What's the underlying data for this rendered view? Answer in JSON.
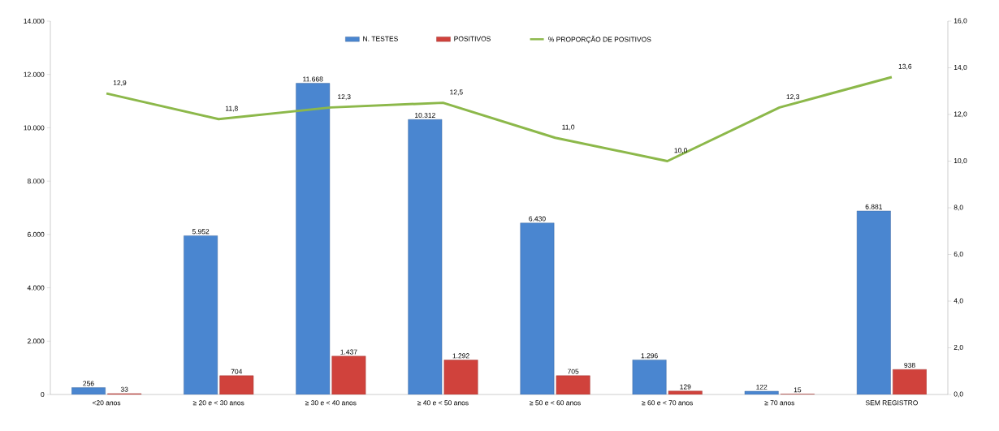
{
  "chart_data": {
    "type": "bar",
    "categories": [
      "<20 anos",
      "≥ 20 e < 30 anos",
      "≥ 30 e < 40 anos",
      "≥ 40 e < 50 anos",
      "≥ 50 e < 60 anos",
      "≥ 60 e < 70 anos",
      "≥ 70 anos",
      "SEM REGISTRO"
    ],
    "series": [
      {
        "name": "N. TESTES",
        "color": "#4a86d0",
        "values": [
          256,
          5952,
          11668,
          10312,
          6430,
          1296,
          122,
          6881
        ],
        "value_labels": [
          "256",
          "5.952",
          "11.668",
          "10.312",
          "6.430",
          "1.296",
          "122",
          "6.881"
        ]
      },
      {
        "name": "POSITIVOS",
        "color": "#d0423c",
        "values": [
          33,
          704,
          1437,
          1292,
          705,
          129,
          15,
          938
        ],
        "value_labels": [
          "33",
          "704",
          "1.437",
          "1.292",
          "705",
          "129",
          "15",
          "938"
        ]
      },
      {
        "name": "% PROPORÇÃO DE POSITIVOS",
        "type": "line",
        "axis": "y2",
        "color": "#8cb84a",
        "values": [
          12.9,
          11.8,
          12.3,
          12.5,
          11.0,
          10.0,
          12.3,
          13.6
        ],
        "value_labels": [
          "12,9",
          "11,8",
          "12,3",
          "12,5",
          "11,0",
          "10,0",
          "12,3",
          "13,6"
        ]
      }
    ],
    "ylim": [
      0,
      14000
    ],
    "yticks": [
      0,
      {
        "value": 2000,
        "label": "2.000"
      },
      {
        "value": 4000,
        "label": "4.000"
      },
      {
        "value": 6000,
        "label": "6.000"
      },
      {
        "value": 8000,
        "label": "8.000"
      },
      {
        "value": 10000,
        "label": "10.000"
      },
      {
        "value": 12000,
        "label": "12.000"
      },
      {
        "value": 14000,
        "label": "14.000"
      }
    ],
    "y2lim": [
      0,
      16
    ],
    "y2ticks": [
      {
        "value": 0,
        "label": "0,0"
      },
      {
        "value": 2,
        "label": "2,0"
      },
      {
        "value": 4,
        "label": "4,0"
      },
      {
        "value": 6,
        "label": "6,0"
      },
      {
        "value": 8,
        "label": "8,0"
      },
      {
        "value": 10,
        "label": "10,0"
      },
      {
        "value": 12,
        "label": "12,0"
      },
      {
        "value": 14,
        "label": "14,0"
      },
      {
        "value": 16,
        "label": "16,0"
      }
    ],
    "legend": "top",
    "grid": false,
    "marker": "none"
  }
}
